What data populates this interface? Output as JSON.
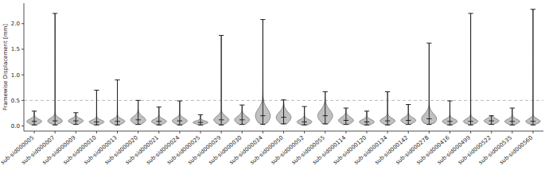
{
  "chart_data": {
    "type": "violin",
    "y_label": "Framewise Displacement [mm]",
    "categories": [
      "sub-sid000005",
      "sub-sid000007",
      "sub-sid000009",
      "sub-sid000010",
      "sub-sid000013",
      "sub-sid000020",
      "sub-sid000021",
      "sub-sid000024",
      "sub-sid000025",
      "sub-sid000029",
      "sub-sid000030",
      "sub-sid000034",
      "sub-sid000050",
      "sub-sid000052",
      "sub-sid000055",
      "sub-sid000114",
      "sub-sid000120",
      "sub-sid000134",
      "sub-sid000142",
      "sub-sid000278",
      "sub-sid000416",
      "sub-sid000499",
      "sub-sid000522",
      "sub-sid000535",
      "sub-sid000560"
    ],
    "min": [
      0.02,
      0.02,
      0.03,
      0.02,
      0.02,
      0.03,
      0.02,
      0.02,
      0.02,
      0.02,
      0.03,
      0.03,
      0.04,
      0.02,
      0.04,
      0.03,
      0.02,
      0.02,
      0.03,
      0.03,
      0.02,
      0.02,
      0.03,
      0.02,
      0.02
    ],
    "q1": [
      0.06,
      0.07,
      0.07,
      0.06,
      0.06,
      0.08,
      0.06,
      0.07,
      0.05,
      0.08,
      0.08,
      0.12,
      0.11,
      0.05,
      0.13,
      0.07,
      0.05,
      0.07,
      0.08,
      0.09,
      0.06,
      0.06,
      0.07,
      0.06,
      0.06
    ],
    "median": [
      0.09,
      0.1,
      0.1,
      0.08,
      0.09,
      0.12,
      0.09,
      0.1,
      0.07,
      0.12,
      0.12,
      0.2,
      0.17,
      0.08,
      0.2,
      0.11,
      0.08,
      0.1,
      0.11,
      0.14,
      0.09,
      0.09,
      0.1,
      0.09,
      0.09
    ],
    "q3": [
      0.12,
      0.14,
      0.13,
      0.11,
      0.12,
      0.17,
      0.12,
      0.14,
      0.09,
      0.17,
      0.17,
      0.3,
      0.24,
      0.11,
      0.28,
      0.15,
      0.11,
      0.14,
      0.15,
      0.22,
      0.12,
      0.12,
      0.13,
      0.12,
      0.12
    ],
    "max": [
      0.29,
      2.2,
      0.26,
      0.7,
      0.9,
      0.5,
      0.37,
      0.49,
      0.22,
      1.77,
      0.41,
      2.08,
      0.51,
      0.38,
      0.67,
      0.35,
      0.29,
      0.67,
      0.42,
      1.62,
      0.49,
      2.2,
      0.2,
      0.35,
      2.28
    ],
    "threshold": 0.5,
    "color": "#b0b0b0",
    "ylim": [
      -0.1,
      2.4
    ],
    "yticks": [
      {
        "value": 0,
        "label": "0.0"
      },
      0.5,
      {
        "value": 1,
        "label": "1.0"
      },
      1.5,
      {
        "value": 2,
        "label": "2.0"
      }
    ],
    "grid": false
  }
}
